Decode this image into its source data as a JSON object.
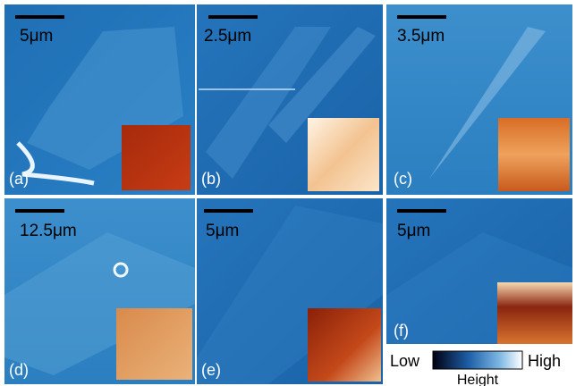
{
  "panels": [
    {
      "label": "(a)",
      "scale": "5μm"
    },
    {
      "label": "(b)",
      "scale": "2.5μm"
    },
    {
      "label": "(c)",
      "scale": "3.5μm"
    },
    {
      "label": "(d)",
      "scale": "12.5μm"
    },
    {
      "label": "(e)",
      "scale": "5μm"
    },
    {
      "label": "(f)",
      "scale": "5μm"
    }
  ],
  "colorbar": {
    "low": "Low",
    "high": "High",
    "title": "Height"
  }
}
